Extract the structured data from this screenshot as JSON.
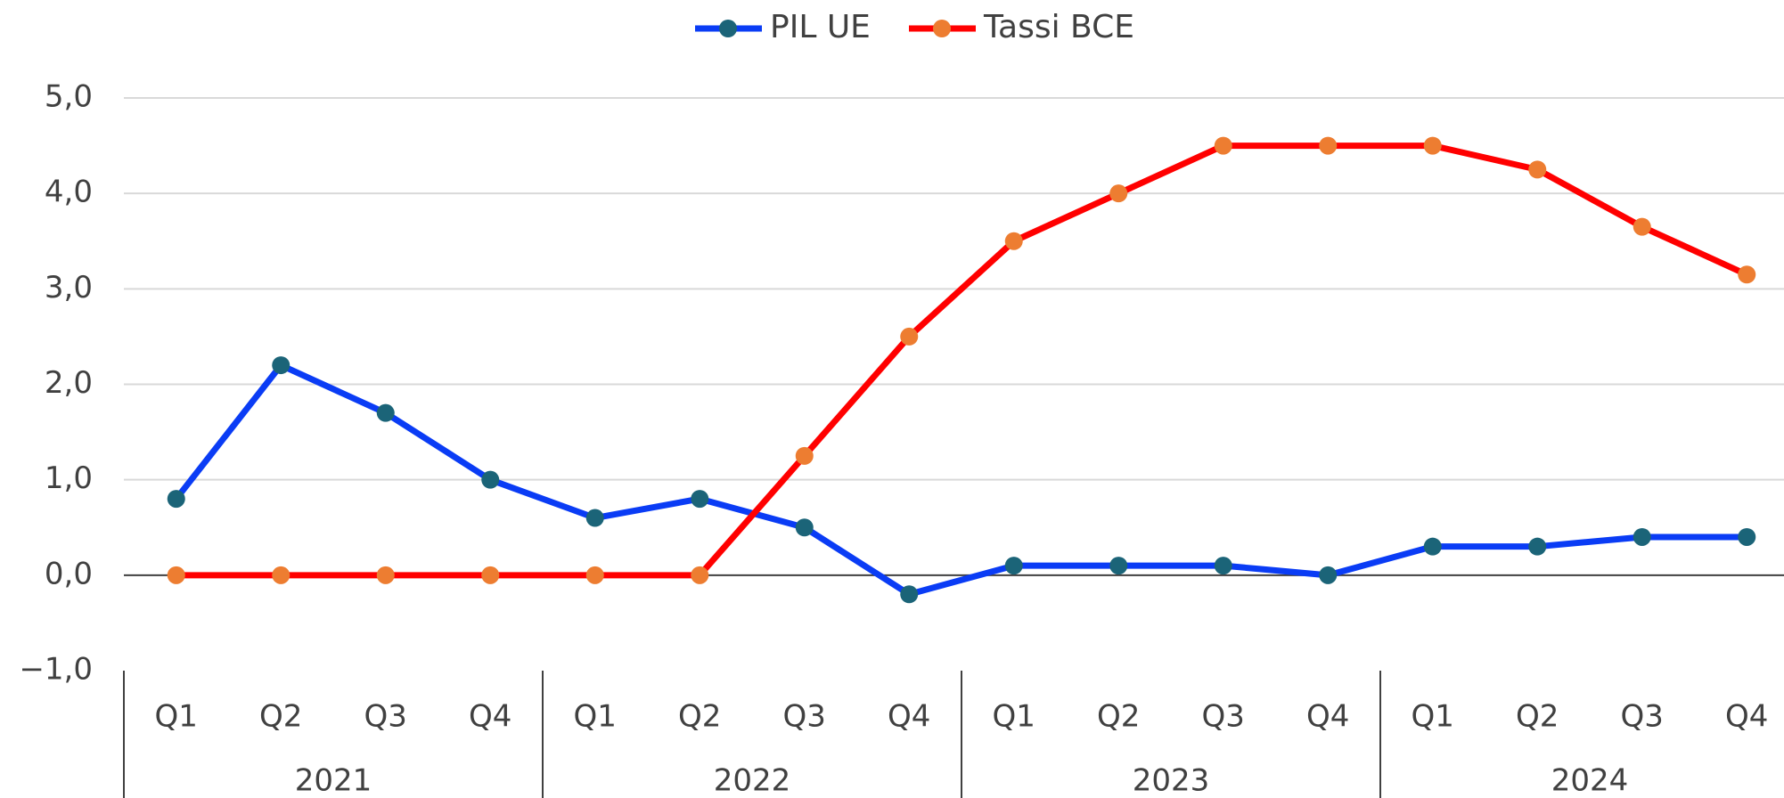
{
  "chart_data": {
    "type": "line",
    "categories": [
      "Q1",
      "Q2",
      "Q3",
      "Q4",
      "Q1",
      "Q2",
      "Q3",
      "Q4",
      "Q1",
      "Q2",
      "Q3",
      "Q4",
      "Q1",
      "Q2",
      "Q3",
      "Q4"
    ],
    "category_groups": [
      "2021",
      "2022",
      "2023",
      "2024"
    ],
    "series": [
      {
        "name": "PIL UE",
        "color": "#0a3cf5",
        "marker_color": "#1b6478",
        "values": [
          0.8,
          2.2,
          1.7,
          1.0,
          0.6,
          0.8,
          0.5,
          -0.2,
          0.1,
          0.1,
          0.1,
          0.0,
          0.3,
          0.3,
          0.4,
          0.4
        ]
      },
      {
        "name": "Tassi BCE",
        "color": "#ff0000",
        "marker_color": "#ed7d31",
        "values": [
          0,
          0,
          0,
          0,
          0,
          0,
          1.25,
          2.5,
          3.5,
          4.0,
          4.5,
          4.5,
          4.5,
          4.25,
          3.65,
          3.15
        ]
      }
    ],
    "ylim": [
      -1,
      5
    ],
    "yticks": [
      {
        "value": -1,
        "label": "−1,0"
      },
      {
        "value": 0,
        "label": "0,0"
      },
      {
        "value": 1,
        "label": "1,0"
      },
      {
        "value": 2,
        "label": "2,0"
      },
      {
        "value": 3,
        "label": "3,0"
      },
      {
        "value": 4,
        "label": "4,0"
      },
      {
        "value": 5,
        "label": "5,0"
      }
    ],
    "grid": true,
    "legend": "top"
  }
}
